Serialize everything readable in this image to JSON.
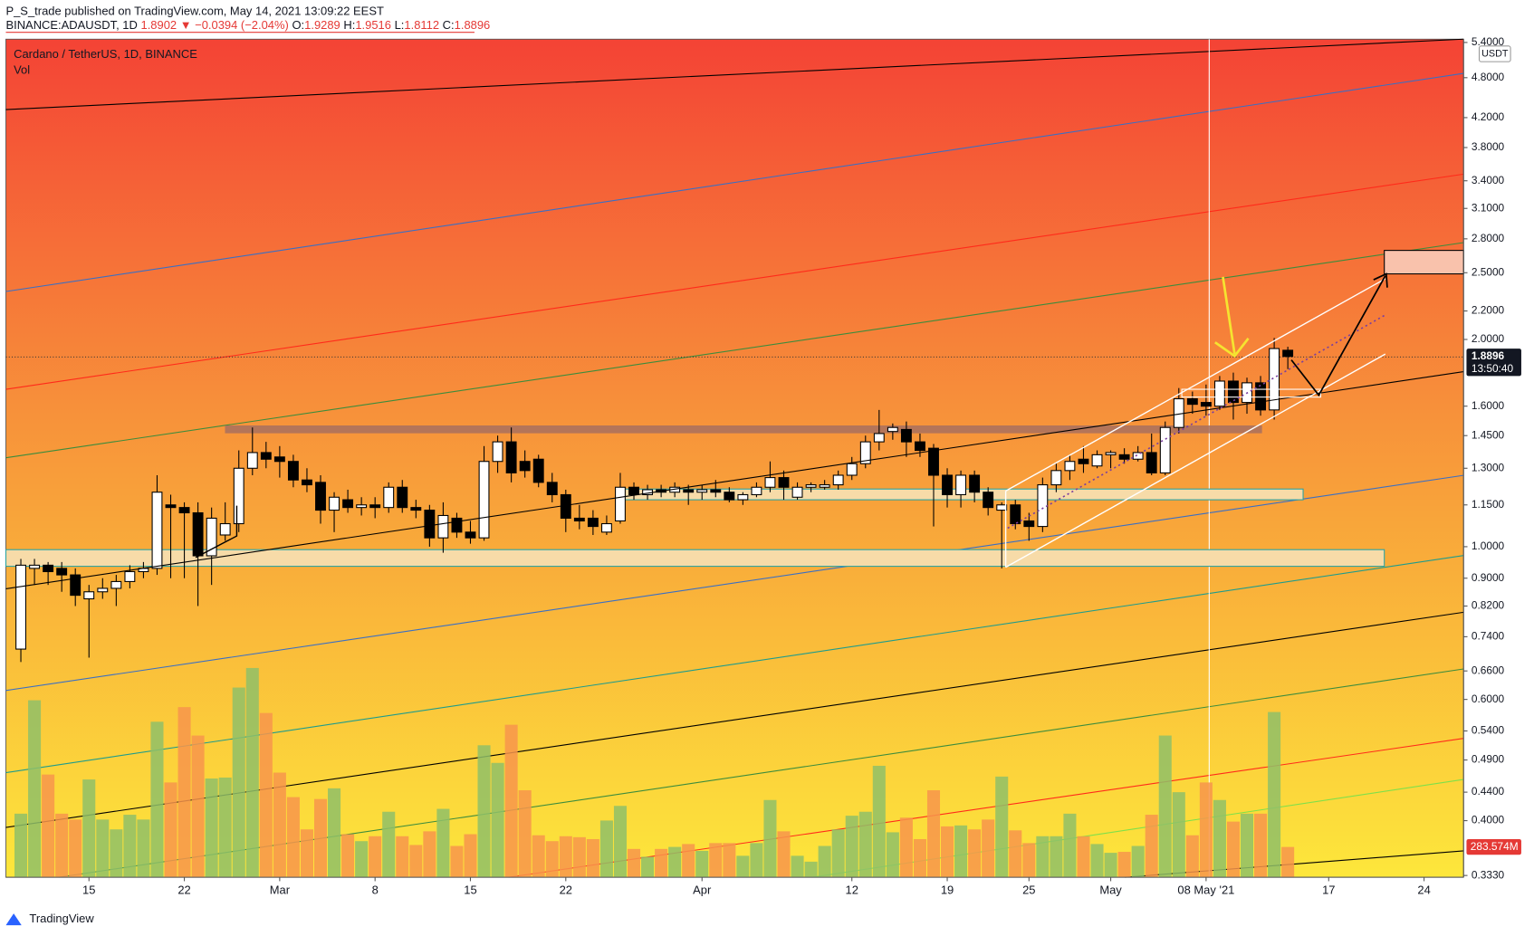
{
  "header": {
    "publisher": "P_S_trade published on TradingView.com, May 14, 2021 13:09:22 EEST",
    "symbol": "BINANCE:ADAUSDT, 1D",
    "last": "1.8902",
    "change": "▼ −0.0394 (−2.04%)",
    "ohlc": [
      {
        "label": "O:",
        "value": "1.9289"
      },
      {
        "label": "H:",
        "value": "1.9516"
      },
      {
        "label": "L:",
        "value": "1.8112"
      },
      {
        "label": "C:",
        "value": "1.8896"
      }
    ]
  },
  "chart_data": {
    "type": "candlestick",
    "title": "Cardano / TetherUS, 1D, BINANCE",
    "volume_title": "Vol",
    "currency": "USDT",
    "countdown": "13:50:40",
    "log_scale": true,
    "grid": false,
    "up_color": "#ffffff",
    "down_color": "#000000",
    "volume_up_color": "#8fc068",
    "volume_down_color": "#f7954c",
    "xlim": [
      -1.1,
      105.9
    ],
    "xticks": [
      {
        "value": 5,
        "label": "15"
      },
      {
        "value": 12,
        "label": "22"
      },
      {
        "value": 19,
        "label": "Mar"
      },
      {
        "value": 26,
        "label": "8"
      },
      {
        "value": 33,
        "label": "15"
      },
      {
        "value": 40,
        "label": "22"
      },
      {
        "value": 50,
        "label": "Apr"
      },
      {
        "value": 61,
        "label": "12"
      },
      {
        "value": 68,
        "label": "19"
      },
      {
        "value": 74,
        "label": "25"
      },
      {
        "value": 80,
        "label": "May"
      },
      {
        "value": 87,
        "label": "08 May '21"
      },
      {
        "value": 96,
        "label": "17"
      },
      {
        "value": 103,
        "label": "24"
      }
    ],
    "ylim": [
      0.331,
      5.46
    ],
    "yticks": [
      {
        "value": 5.4,
        "label": "5.4000"
      },
      {
        "value": 4.8,
        "label": "4.8000"
      },
      {
        "value": 4.2,
        "label": "4.2000"
      },
      {
        "value": 3.8,
        "label": "3.8000"
      },
      {
        "value": 3.4,
        "label": "3.4000"
      },
      {
        "value": 3.1,
        "label": "3.1000"
      },
      {
        "value": 2.8,
        "label": "2.8000"
      },
      {
        "value": 2.5,
        "label": "2.5000"
      },
      {
        "value": 2.2,
        "label": "2.2000"
      },
      {
        "value": 2,
        "label": "2.0000"
      },
      {
        "value": 1.6,
        "label": "1.6000"
      },
      {
        "value": 1.45,
        "label": "1.4500"
      },
      {
        "value": 1.3,
        "label": "1.3000"
      },
      {
        "value": 1.15,
        "label": "1.1500"
      },
      {
        "value": 1,
        "label": "1.0000"
      },
      {
        "value": 0.9,
        "label": "0.9000"
      },
      {
        "value": 0.82,
        "label": "0.8200"
      },
      {
        "value": 0.74,
        "label": "0.7400"
      },
      {
        "value": 0.66,
        "label": "0.6600"
      },
      {
        "value": 0.6,
        "label": "0.6000"
      },
      {
        "value": 0.54,
        "label": "0.5400"
      },
      {
        "value": 0.49,
        "label": "0.4900"
      },
      {
        "value": 0.44,
        "label": "0.4400"
      },
      {
        "value": 0.4,
        "label": "0.4000"
      },
      {
        "value": 0.333,
        "label": "0.3330"
      }
    ],
    "open": [
      0.71,
      0.93,
      0.94,
      0.93,
      0.91,
      0.84,
      0.86,
      0.87,
      0.89,
      0.92,
      0.93,
      1.15,
      1.14,
      1.12,
      0.97,
      1.04,
      1.08,
      1.3,
      1.37,
      1.35,
      1.33,
      1.25,
      1.24,
      1.13,
      1.17,
      1.14,
      1.15,
      1.14,
      1.22,
      1.14,
      1.13,
      1.03,
      1.1,
      1.05,
      1.03,
      1.33,
      1.42,
      1.33,
      1.34,
      1.24,
      1.19,
      1.1,
      1.1,
      1.05,
      1.09,
      1.22,
      1.19,
      1.21,
      1.2,
      1.21,
      1.2,
      1.21,
      1.2,
      1.17,
      1.19,
      1.22,
      1.26,
      1.18,
      1.22,
      1.22,
      1.23,
      1.27,
      1.32,
      1.42,
      1.47,
      1.48,
      1.42,
      1.39,
      1.27,
      1.19,
      1.27,
      1.2,
      1.13,
      1.15,
      1.09,
      1.07,
      1.23,
      1.29,
      1.34,
      1.31,
      1.36,
      1.36,
      1.34,
      1.37,
      1.28,
      1.49,
      1.64,
      1.62,
      1.6,
      1.74,
      1.62,
      1.73,
      1.58,
      1.9289
    ],
    "high": [
      0.96,
      0.96,
      0.95,
      0.95,
      0.93,
      0.88,
      0.9,
      0.91,
      0.94,
      0.95,
      1.27,
      1.19,
      1.16,
      1.16,
      1.14,
      1.16,
      1.38,
      1.49,
      1.42,
      1.4,
      1.36,
      1.3,
      1.27,
      1.2,
      1.21,
      1.18,
      1.18,
      1.24,
      1.25,
      1.17,
      1.15,
      1.16,
      1.12,
      1.09,
      1.4,
      1.45,
      1.49,
      1.38,
      1.36,
      1.28,
      1.21,
      1.15,
      1.13,
      1.11,
      1.28,
      1.24,
      1.23,
      1.23,
      1.24,
      1.23,
      1.23,
      1.25,
      1.22,
      1.2,
      1.24,
      1.33,
      1.29,
      1.24,
      1.24,
      1.25,
      1.29,
      1.35,
      1.45,
      1.58,
      1.51,
      1.52,
      1.46,
      1.41,
      1.3,
      1.29,
      1.29,
      1.22,
      1.16,
      1.17,
      1.12,
      1.26,
      1.32,
      1.36,
      1.4,
      1.38,
      1.38,
      1.39,
      1.4,
      1.46,
      1.52,
      1.7,
      1.68,
      1.72,
      1.77,
      1.79,
      1.76,
      1.77,
      2.01,
      1.9516
    ],
    "low": [
      0.68,
      0.88,
      0.88,
      0.86,
      0.82,
      0.69,
      0.84,
      0.82,
      0.87,
      0.9,
      0.91,
      0.9,
      0.9,
      0.82,
      0.88,
      1.02,
      1.05,
      1.27,
      1.3,
      1.26,
      1.22,
      1.2,
      1.08,
      1.05,
      1.12,
      1.11,
      1.1,
      1.12,
      1.12,
      1.1,
      1.0,
      0.98,
      1.03,
      1.01,
      1.02,
      1.28,
      1.24,
      1.26,
      1.22,
      1.16,
      1.05,
      1.06,
      1.04,
      1.04,
      1.08,
      1.17,
      1.17,
      1.18,
      1.18,
      1.15,
      1.17,
      1.18,
      1.16,
      1.15,
      1.18,
      1.2,
      1.17,
      1.17,
      1.2,
      1.21,
      1.21,
      1.25,
      1.3,
      1.38,
      1.43,
      1.35,
      1.35,
      1.07,
      1.14,
      1.14,
      1.16,
      1.11,
      0.93,
      1.06,
      1.02,
      1.05,
      1.2,
      1.25,
      1.28,
      1.3,
      1.3,
      1.32,
      1.33,
      1.27,
      1.27,
      1.46,
      1.56,
      1.55,
      1.58,
      1.53,
      1.56,
      1.55,
      1.53,
      1.8112
    ],
    "close": [
      0.94,
      0.94,
      0.92,
      0.91,
      0.85,
      0.86,
      0.87,
      0.89,
      0.92,
      0.93,
      1.2,
      1.14,
      1.12,
      0.97,
      1.1,
      1.08,
      1.3,
      1.37,
      1.34,
      1.33,
      1.25,
      1.23,
      1.13,
      1.18,
      1.14,
      1.15,
      1.14,
      1.22,
      1.14,
      1.13,
      1.03,
      1.11,
      1.05,
      1.03,
      1.33,
      1.42,
      1.28,
      1.29,
      1.24,
      1.19,
      1.1,
      1.09,
      1.07,
      1.08,
      1.22,
      1.19,
      1.21,
      1.2,
      1.22,
      1.2,
      1.21,
      1.2,
      1.17,
      1.19,
      1.22,
      1.26,
      1.22,
      1.22,
      1.23,
      1.23,
      1.27,
      1.32,
      1.42,
      1.46,
      1.49,
      1.42,
      1.38,
      1.27,
      1.19,
      1.27,
      1.2,
      1.14,
      1.15,
      1.08,
      1.07,
      1.23,
      1.29,
      1.33,
      1.32,
      1.36,
      1.37,
      1.34,
      1.37,
      1.28,
      1.49,
      1.64,
      1.61,
      1.6,
      1.74,
      1.62,
      1.73,
      1.58,
      1.94,
      1.8896
    ],
    "volume": {
      "values": [
        595,
        1656,
        961,
        595,
        540,
        915,
        540,
        448,
        585,
        540,
        1455,
        887,
        1592,
        1326,
        924,
        933,
        1775,
        1958,
        1537,
        979,
        750,
        448,
        732,
        832,
        403,
        338,
        384,
        613,
        384,
        302,
        430,
        640,
        293,
        403,
        1235,
        1070,
        1427,
        814,
        393,
        338,
        384,
        375,
        357,
        531,
        668,
        265,
        192,
        265,
        284,
        311,
        247,
        320,
        320,
        201,
        320,
        723,
        430,
        201,
        146,
        293,
        448,
        576,
        613,
        1043,
        421,
        558,
        357,
        814,
        476,
        485,
        448,
        540,
        942,
        439,
        320,
        384,
        384,
        595,
        384,
        311,
        229,
        238,
        293,
        585,
        1326,
        796,
        393,
        887,
        723,
        521,
        595,
        595,
        1546,
        283.574
      ],
      "last_label": "283.574M"
    }
  },
  "footer": {
    "brand": "TradingView"
  }
}
